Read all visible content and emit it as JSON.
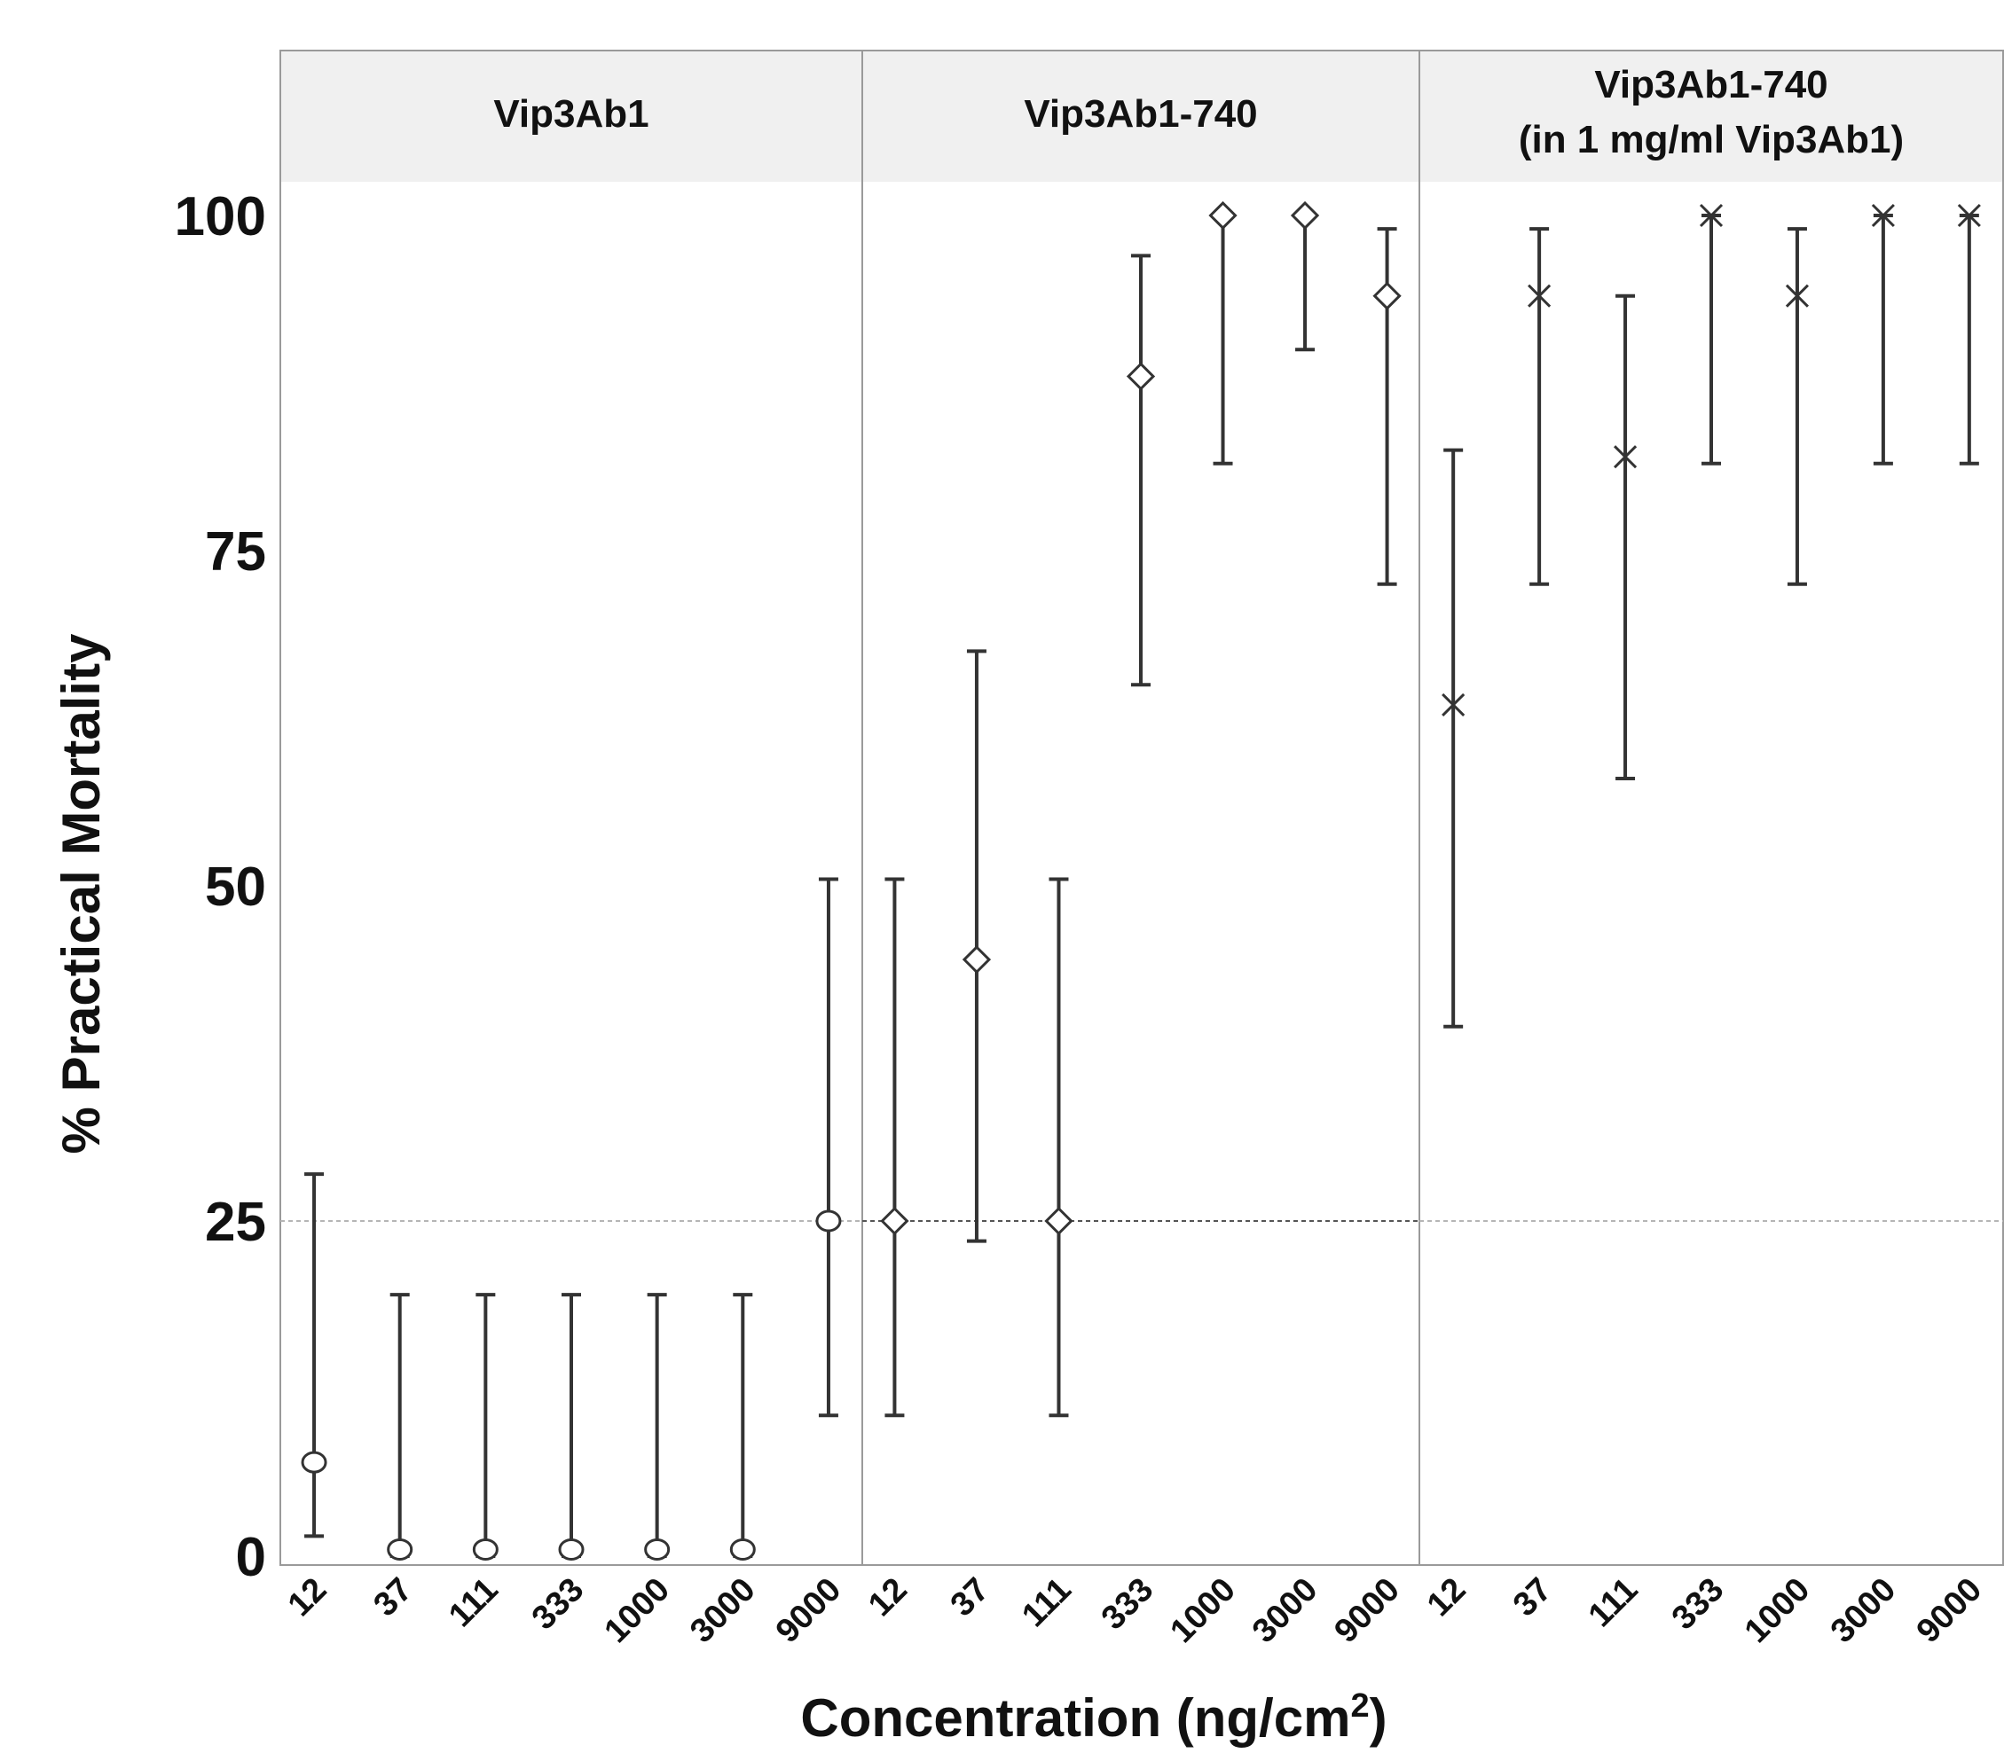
{
  "chart_data": {
    "type": "scatter",
    "facets": [
      {
        "title_lines": [
          "Vip3Ab1"
        ],
        "marker": "circle",
        "categories": [
          "12",
          "37",
          "111",
          "333",
          "1000",
          "3000",
          "9000"
        ],
        "values": [
          7,
          0.5,
          0.5,
          0.5,
          0.5,
          0.5,
          25
        ],
        "lower": [
          1.5,
          0,
          0,
          0,
          0,
          0,
          10.5
        ],
        "upper": [
          28.5,
          19.5,
          19.5,
          19.5,
          19.5,
          19.5,
          50.5
        ]
      },
      {
        "title_lines": [
          "Vip3Ab1-740"
        ],
        "marker": "diamond",
        "categories": [
          "12",
          "37",
          "111",
          "333",
          "1000",
          "3000",
          "9000"
        ],
        "values": [
          25,
          44.5,
          25,
          88,
          100,
          100,
          94
        ],
        "lower": [
          10.5,
          23.5,
          10.5,
          65,
          81.5,
          90,
          72.5
        ],
        "upper": [
          50.5,
          67.5,
          50.5,
          97,
          100,
          100,
          99
        ]
      },
      {
        "title_lines": [
          "Vip3Ab1-740",
          "(in 1 mg/ml Vip3Ab1)"
        ],
        "marker": "cross",
        "categories": [
          "12",
          "37",
          "111",
          "333",
          "1000",
          "3000",
          "9000"
        ],
        "values": [
          63.5,
          94,
          82,
          100,
          94,
          100,
          100
        ],
        "lower": [
          39.5,
          72.5,
          58,
          81.5,
          72.5,
          81.5,
          81.5
        ],
        "upper": [
          82.5,
          99,
          94,
          100,
          99,
          100,
          100
        ]
      }
    ],
    "ylim": [
      0,
      100
    ],
    "yticks": [
      "0",
      "25",
      "50",
      "75",
      "100"
    ],
    "reference_line": 25,
    "xlabel": "Concentration (ng/cm",
    "xlabel_superscript": "2",
    "xlabel_suffix": ")",
    "ylabel": "% Practical Mortality"
  }
}
